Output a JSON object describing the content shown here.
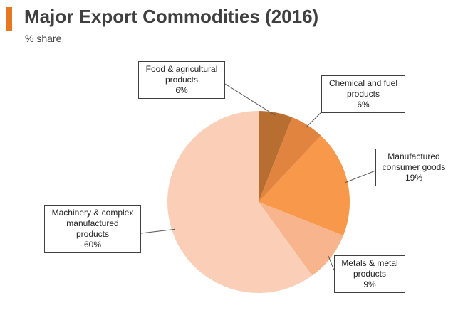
{
  "header": {
    "title": "Major Export Commodities (2016)",
    "subtitle": "% share",
    "accent_color": "#e87722"
  },
  "chart_data": {
    "type": "pie",
    "title": "Major Export Commodities (2016)",
    "subtitle": "% share",
    "slices": [
      {
        "label_lines": [
          "Food & agricultural",
          "products"
        ],
        "pct": "6%",
        "value": 6,
        "color": "#b86d31"
      },
      {
        "label_lines": [
          "Chemical and fuel",
          "products"
        ],
        "pct": "6%",
        "value": 6,
        "color": "#e08440"
      },
      {
        "label_lines": [
          "Manufactured",
          "consumer goods"
        ],
        "pct": "19%",
        "value": 19,
        "color": "#f7984a"
      },
      {
        "label_lines": [
          "Metals & metal",
          "products"
        ],
        "pct": "9%",
        "value": 9,
        "color": "#f8b48c"
      },
      {
        "label_lines": [
          "Machinery & complex",
          "manufactured",
          "products"
        ],
        "pct": "60%",
        "value": 60,
        "color": "#fbcfb7"
      }
    ]
  }
}
